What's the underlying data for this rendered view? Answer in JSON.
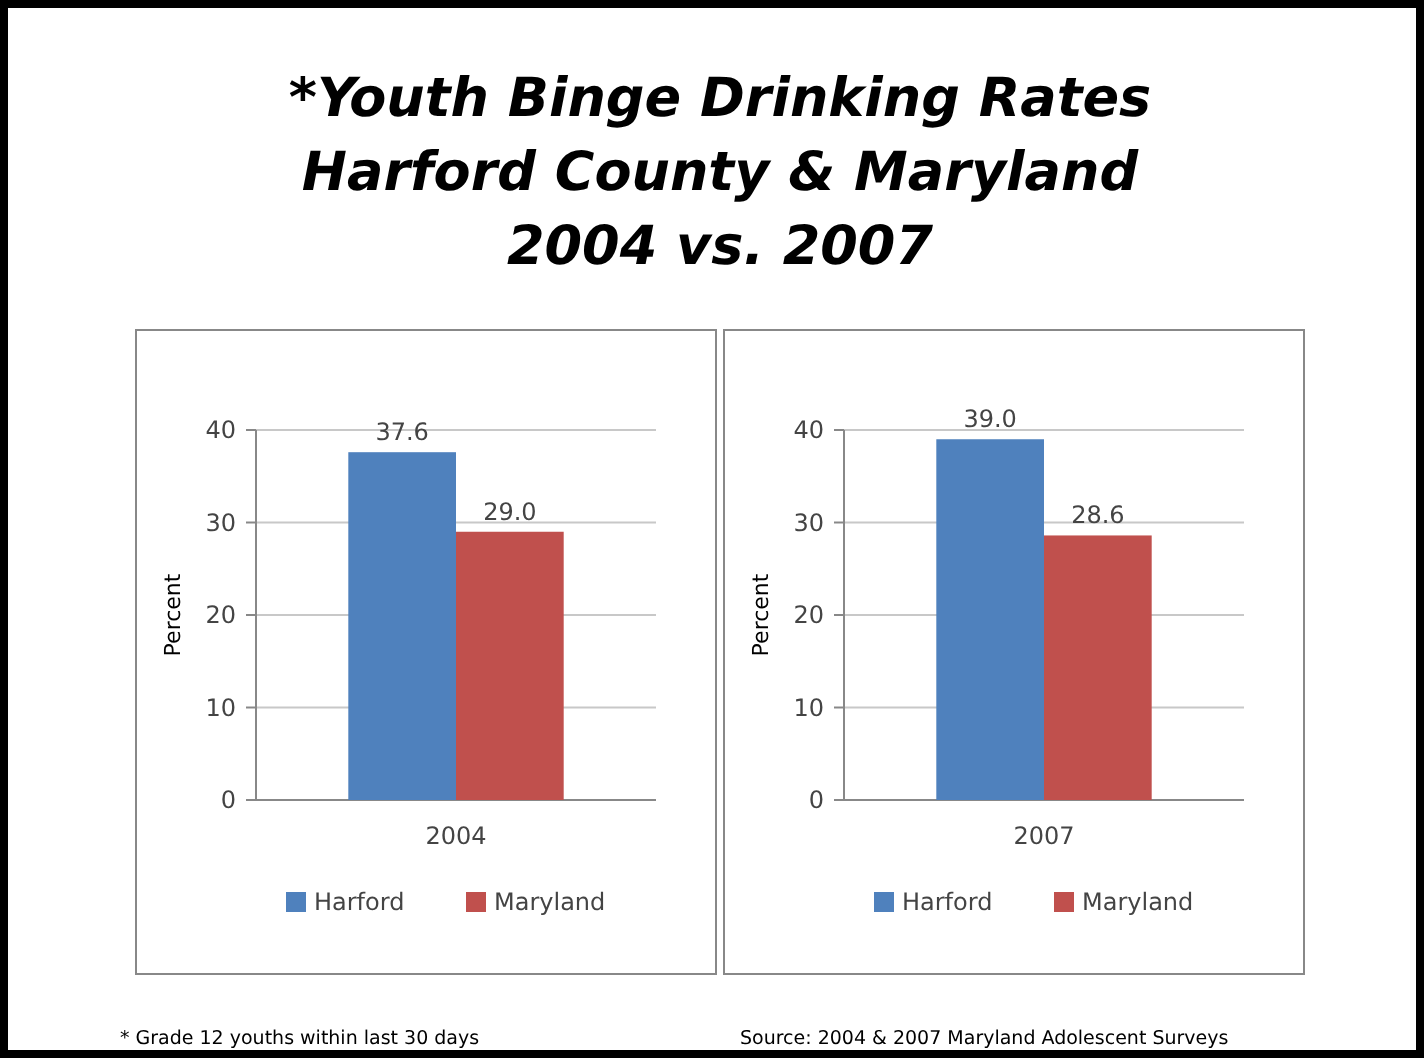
{
  "chart_data": [
    {
      "type": "other",
      "title": "*Youth Binge Drinking Rates\nHarford County & Maryland\n2004 vs. 2007",
      "annotations": [
        "* Grade 12 youths within last 30 days",
        "Source: 2004 & 2007 Maryland Adolescent Surveys"
      ]
    },
    {
      "type": "bar",
      "categories": [
        "2004"
      ],
      "ylabel": "Percent",
      "ylim": [
        0,
        40
      ],
      "yticks": [
        0,
        10,
        20,
        30,
        40
      ],
      "grid": "y",
      "legend": "bottom",
      "series": [
        {
          "name": "Harford",
          "color": "#4f81bd",
          "values": [
            37.6
          ],
          "value_labels": [
            "37.6"
          ]
        },
        {
          "name": "Maryland",
          "color": "#c0504d",
          "values": [
            29.0
          ],
          "value_labels": [
            "29.0"
          ]
        }
      ]
    },
    {
      "type": "bar",
      "categories": [
        "2007"
      ],
      "ylabel": "Percent",
      "ylim": [
        0,
        40
      ],
      "yticks": [
        0,
        10,
        20,
        30,
        40
      ],
      "grid": "y",
      "legend": "bottom",
      "series": [
        {
          "name": "Harford",
          "color": "#4f81bd",
          "values": [
            39.0
          ],
          "value_labels": [
            "39.0"
          ]
        },
        {
          "name": "Maryland",
          "color": "#c0504d",
          "values": [
            28.6
          ],
          "value_labels": [
            "28.6"
          ]
        }
      ]
    }
  ]
}
